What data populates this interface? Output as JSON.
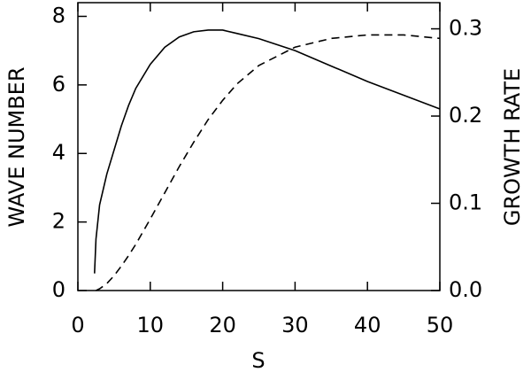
{
  "chart_data": {
    "type": "line",
    "xlabel": "S",
    "ylabel": "WAVE NUMBER",
    "y2label": "GROWTH RATE",
    "x": [
      2.3,
      2.5,
      3,
      4,
      5,
      6,
      7,
      8,
      10,
      12,
      14,
      16,
      18,
      20,
      22,
      25,
      30,
      35,
      40,
      45,
      50
    ],
    "series": [
      {
        "color": "#000000",
        "line_style": "solid",
        "axis": "y",
        "values": [
          0.5,
          1.5,
          2.5,
          3.4,
          4.1,
          4.8,
          5.4,
          5.9,
          6.6,
          7.1,
          7.4,
          7.55,
          7.6,
          7.6,
          7.5,
          7.35,
          7.0,
          6.55,
          6.1,
          5.7,
          5.3
        ]
      },
      {
        "color": "#000000",
        "line_style": "dashed",
        "axis": "y2",
        "values": [
          null,
          0,
          0.002,
          0.008,
          0.017,
          0.028,
          0.04,
          0.053,
          0.082,
          0.112,
          0.142,
          0.17,
          0.196,
          0.218,
          0.237,
          0.258,
          0.279,
          0.289,
          0.293,
          0.293,
          0.289
        ]
      }
    ],
    "xlim": [
      0,
      50
    ],
    "xticks": [
      0,
      10,
      20,
      30,
      40,
      50
    ],
    "ylim": [
      0,
      8.4
    ],
    "yticks": [
      0,
      2,
      4,
      6,
      8
    ],
    "y2lim": [
      0,
      0.33
    ],
    "y2ticks": [
      {
        "value": 0,
        "label": "0.0"
      },
      0.1,
      0.2,
      0.3
    ]
  }
}
